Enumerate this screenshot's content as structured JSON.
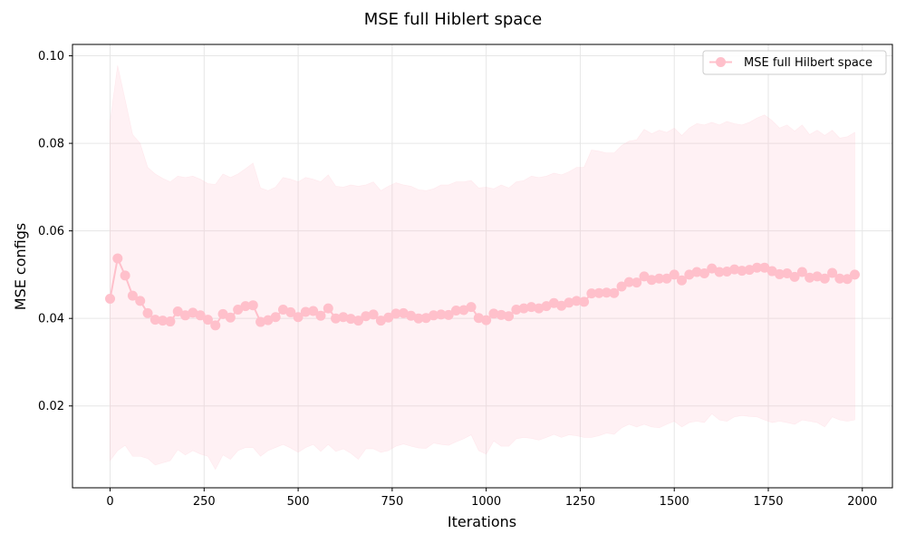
{
  "chart_data": {
    "type": "line",
    "title": "MSE full Hiblert space",
    "xlabel": "Iterations",
    "ylabel": "MSE configs",
    "xlim": [
      -100,
      2080
    ],
    "ylim": [
      0.0013,
      0.1026
    ],
    "xticks": [
      0,
      250,
      500,
      750,
      1000,
      1250,
      1500,
      1750,
      2000
    ],
    "yticks": [
      0.02,
      0.04,
      0.06,
      0.08,
      0.1
    ],
    "xtick_labels": [
      "0",
      "250",
      "500",
      "750",
      "1000",
      "1250",
      "1500",
      "1750",
      "2000"
    ],
    "ytick_labels": [
      "0.02",
      "0.04",
      "0.06",
      "0.08",
      "0.10"
    ],
    "grid": true,
    "legend_position": "top-right",
    "series": [
      {
        "name": "MSE full Hilbert space",
        "color": "#ffc0cb",
        "marker": "circle",
        "x": [
          0,
          20,
          40,
          60,
          80,
          100,
          120,
          140,
          160,
          180,
          200,
          220,
          240,
          260,
          280,
          300,
          320,
          340,
          360,
          380,
          400,
          420,
          440,
          460,
          480,
          500,
          520,
          540,
          560,
          580,
          600,
          620,
          640,
          660,
          680,
          700,
          720,
          740,
          760,
          780,
          800,
          820,
          840,
          860,
          880,
          900,
          920,
          940,
          960,
          980,
          1000,
          1020,
          1040,
          1060,
          1080,
          1100,
          1120,
          1140,
          1160,
          1180,
          1200,
          1220,
          1240,
          1260,
          1280,
          1300,
          1320,
          1340,
          1360,
          1380,
          1400,
          1420,
          1440,
          1460,
          1480,
          1500,
          1520,
          1540,
          1560,
          1580,
          1600,
          1620,
          1640,
          1660,
          1680,
          1700,
          1720,
          1740,
          1760,
          1780,
          1800,
          1820,
          1840,
          1860,
          1880,
          1900,
          1920,
          1940,
          1960,
          1980
        ],
        "y": [
          0.0445,
          0.0537,
          0.0498,
          0.0452,
          0.044,
          0.0412,
          0.0397,
          0.0395,
          0.0393,
          0.0416,
          0.0407,
          0.0413,
          0.0407,
          0.0397,
          0.0384,
          0.041,
          0.0402,
          0.042,
          0.0428,
          0.043,
          0.0392,
          0.0396,
          0.0403,
          0.042,
          0.0414,
          0.0403,
          0.0415,
          0.0417,
          0.0406,
          0.0423,
          0.04,
          0.0403,
          0.0399,
          0.0395,
          0.0405,
          0.0409,
          0.0395,
          0.0402,
          0.0411,
          0.0412,
          0.0406,
          0.04,
          0.0401,
          0.0407,
          0.0409,
          0.0408,
          0.0418,
          0.0419,
          0.0426,
          0.0401,
          0.0396,
          0.0411,
          0.0408,
          0.0405,
          0.042,
          0.0423,
          0.0426,
          0.0423,
          0.0428,
          0.0435,
          0.0429,
          0.0436,
          0.044,
          0.0438,
          0.0457,
          0.0458,
          0.0459,
          0.0458,
          0.0473,
          0.0483,
          0.0482,
          0.0496,
          0.0488,
          0.0491,
          0.0491,
          0.05,
          0.0487,
          0.05,
          0.0506,
          0.0503,
          0.0514,
          0.0506,
          0.0507,
          0.0512,
          0.0509,
          0.0511,
          0.0516,
          0.0516,
          0.0508,
          0.0501,
          0.0503,
          0.0495,
          0.0506,
          0.0493,
          0.0496,
          0.0491,
          0.0504,
          0.0491,
          0.049,
          0.05
        ],
        "band_upper": [
          0.085,
          0.0978,
          0.09,
          0.082,
          0.08,
          0.0745,
          0.073,
          0.072,
          0.0712,
          0.0725,
          0.0722,
          0.0725,
          0.0718,
          0.0708,
          0.0706,
          0.073,
          0.0722,
          0.073,
          0.0742,
          0.0755,
          0.0698,
          0.0692,
          0.07,
          0.0722,
          0.0718,
          0.0712,
          0.0722,
          0.0718,
          0.0712,
          0.0728,
          0.0702,
          0.07,
          0.0705,
          0.0702,
          0.0705,
          0.0712,
          0.0692,
          0.0702,
          0.071,
          0.0705,
          0.0702,
          0.0694,
          0.0692,
          0.0696,
          0.0705,
          0.0705,
          0.0712,
          0.0712,
          0.0715,
          0.0698,
          0.07,
          0.0696,
          0.0705,
          0.0698,
          0.0712,
          0.0715,
          0.0725,
          0.0722,
          0.0725,
          0.0732,
          0.0728,
          0.0735,
          0.0745,
          0.0745,
          0.0785,
          0.0782,
          0.0778,
          0.0778,
          0.0795,
          0.0805,
          0.0808,
          0.0832,
          0.0822,
          0.083,
          0.0825,
          0.0835,
          0.0818,
          0.0835,
          0.0845,
          0.0842,
          0.0848,
          0.0842,
          0.085,
          0.0845,
          0.0842,
          0.0848,
          0.0858,
          0.0865,
          0.0852,
          0.0835,
          0.0842,
          0.0828,
          0.0842,
          0.082,
          0.083,
          0.0818,
          0.083,
          0.0812,
          0.0815,
          0.0825
        ],
        "band_lower": [
          0.0075,
          0.0098,
          0.011,
          0.0085,
          0.0085,
          0.008,
          0.0065,
          0.007,
          0.0075,
          0.01,
          0.0088,
          0.0098,
          0.009,
          0.0085,
          0.0055,
          0.0088,
          0.0078,
          0.0098,
          0.0105,
          0.0105,
          0.0085,
          0.0098,
          0.0105,
          0.0112,
          0.0104,
          0.0094,
          0.0105,
          0.0112,
          0.0096,
          0.0112,
          0.0096,
          0.0102,
          0.0092,
          0.0078,
          0.0102,
          0.0102,
          0.0094,
          0.0098,
          0.0108,
          0.0113,
          0.0108,
          0.0104,
          0.0103,
          0.0115,
          0.0112,
          0.011,
          0.0118,
          0.0125,
          0.0134,
          0.0098,
          0.009,
          0.012,
          0.0108,
          0.0108,
          0.0125,
          0.0128,
          0.0126,
          0.0122,
          0.0128,
          0.0135,
          0.0128,
          0.0134,
          0.0132,
          0.0128,
          0.0128,
          0.0132,
          0.0138,
          0.0135,
          0.015,
          0.0158,
          0.0152,
          0.0158,
          0.0152,
          0.015,
          0.0158,
          0.0165,
          0.0152,
          0.0162,
          0.0165,
          0.0162,
          0.0182,
          0.0168,
          0.0165,
          0.0175,
          0.0178,
          0.0176,
          0.0175,
          0.0168,
          0.0162,
          0.0165,
          0.0162,
          0.0158,
          0.0168,
          0.0165,
          0.0162,
          0.0152,
          0.0175,
          0.0168,
          0.0165,
          0.0168
        ]
      }
    ]
  }
}
